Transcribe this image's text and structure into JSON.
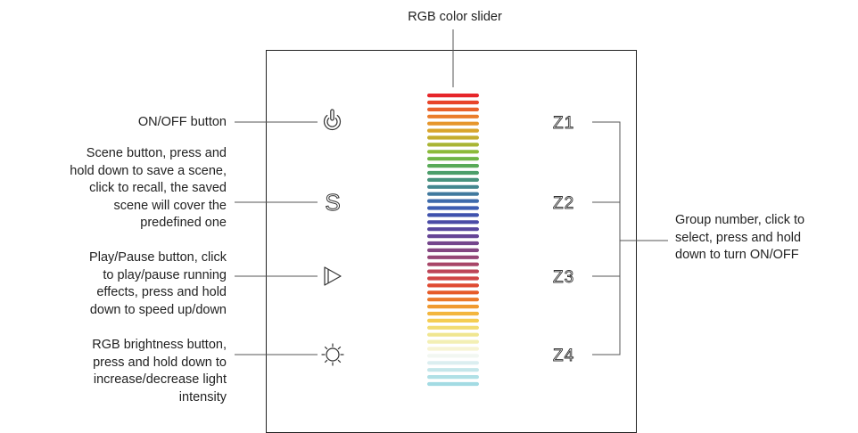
{
  "title": "RGB color slider",
  "left_buttons": [
    {
      "icon": "power-icon",
      "label": "ON/OFF button"
    },
    {
      "icon": "scene-icon",
      "label": "Scene button, press and hold down to save a scene, click to recall, the saved scene will cover the predefined one"
    },
    {
      "icon": "play-pause-icon",
      "label": "Play/Pause button, click to play/pause running effects, press and hold down to speed up/down"
    },
    {
      "icon": "brightness-icon",
      "label": "RGB brightness button, press and hold down to increase/decrease light intensity"
    }
  ],
  "label_lines": {
    "onoff": [
      "ON/OFF button"
    ],
    "scene": [
      "Scene button, press and",
      "hold down to save a scene,",
      "click to recall, the saved",
      "scene will cover the",
      "predefined one"
    ],
    "play": [
      "Play/Pause button, click",
      "to play/pause running",
      "effects, press and hold",
      "down to speed up/down"
    ],
    "brightness": [
      "RGB brightness button,",
      "press and hold down to",
      "increase/decrease light",
      "intensity"
    ],
    "group": [
      "Group number, click to",
      "select, press and hold",
      "down to turn ON/OFF"
    ]
  },
  "scene_glyph": "S",
  "zones": [
    "Z1",
    "Z2",
    "Z3",
    "Z4"
  ],
  "group_label": "Group number, click to select, press and hold down to turn ON/OFF",
  "slider_colors": [
    "#e6262a",
    "#e8442a",
    "#e9622c",
    "#ea7d2c",
    "#e6962c",
    "#d9a52c",
    "#c4ad2e",
    "#a9b534",
    "#8cba3a",
    "#6fb546",
    "#58aa57",
    "#4c9e6a",
    "#48927d",
    "#44878f",
    "#40799e",
    "#3d6aab",
    "#3b5cb1",
    "#3f52ad",
    "#4a4ba6",
    "#58479e",
    "#664596",
    "#74458c",
    "#844681",
    "#954675",
    "#a84668",
    "#bd4558",
    "#d04545",
    "#df4a32",
    "#e65a28",
    "#eb7a2a",
    "#f09a30",
    "#f3b63e",
    "#f5cd52",
    "#f2dc72",
    "#f0e690",
    "#f3efb4",
    "#f7f4d4",
    "#f2f7f2",
    "#dbeef0",
    "#c4e6ea",
    "#b0e0e6",
    "#a3dbe3"
  ]
}
